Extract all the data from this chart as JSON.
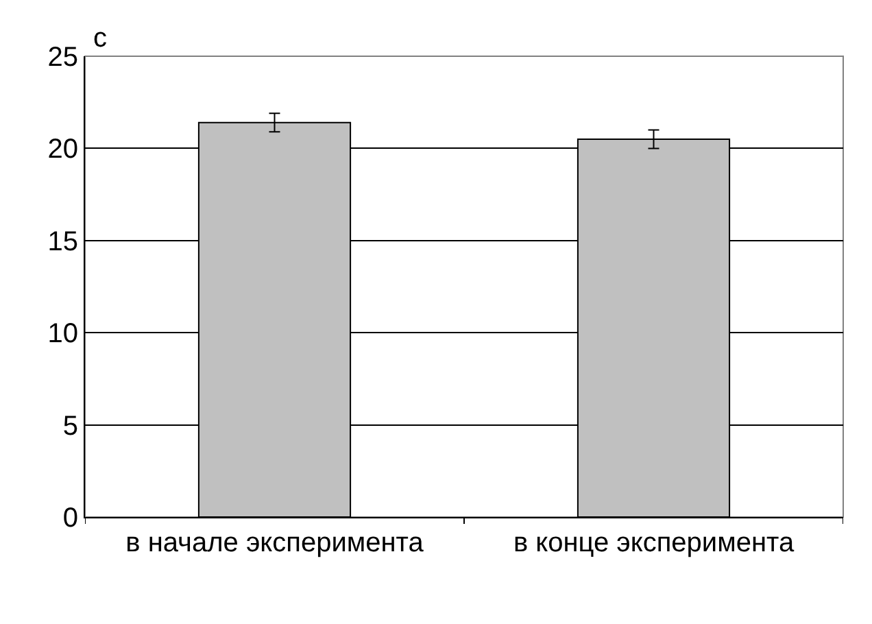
{
  "chart_data": {
    "type": "bar",
    "ylabel": "с",
    "categories": [
      "в начале эксперимента",
      "в конце эксперимента"
    ],
    "values": [
      21.4,
      20.5
    ],
    "errors": [
      0.5,
      0.5
    ],
    "color": "#c0c0c0",
    "ylim": [
      0,
      25
    ],
    "yticks": [
      0,
      5,
      10,
      15,
      20,
      25
    ],
    "grid": "y"
  }
}
